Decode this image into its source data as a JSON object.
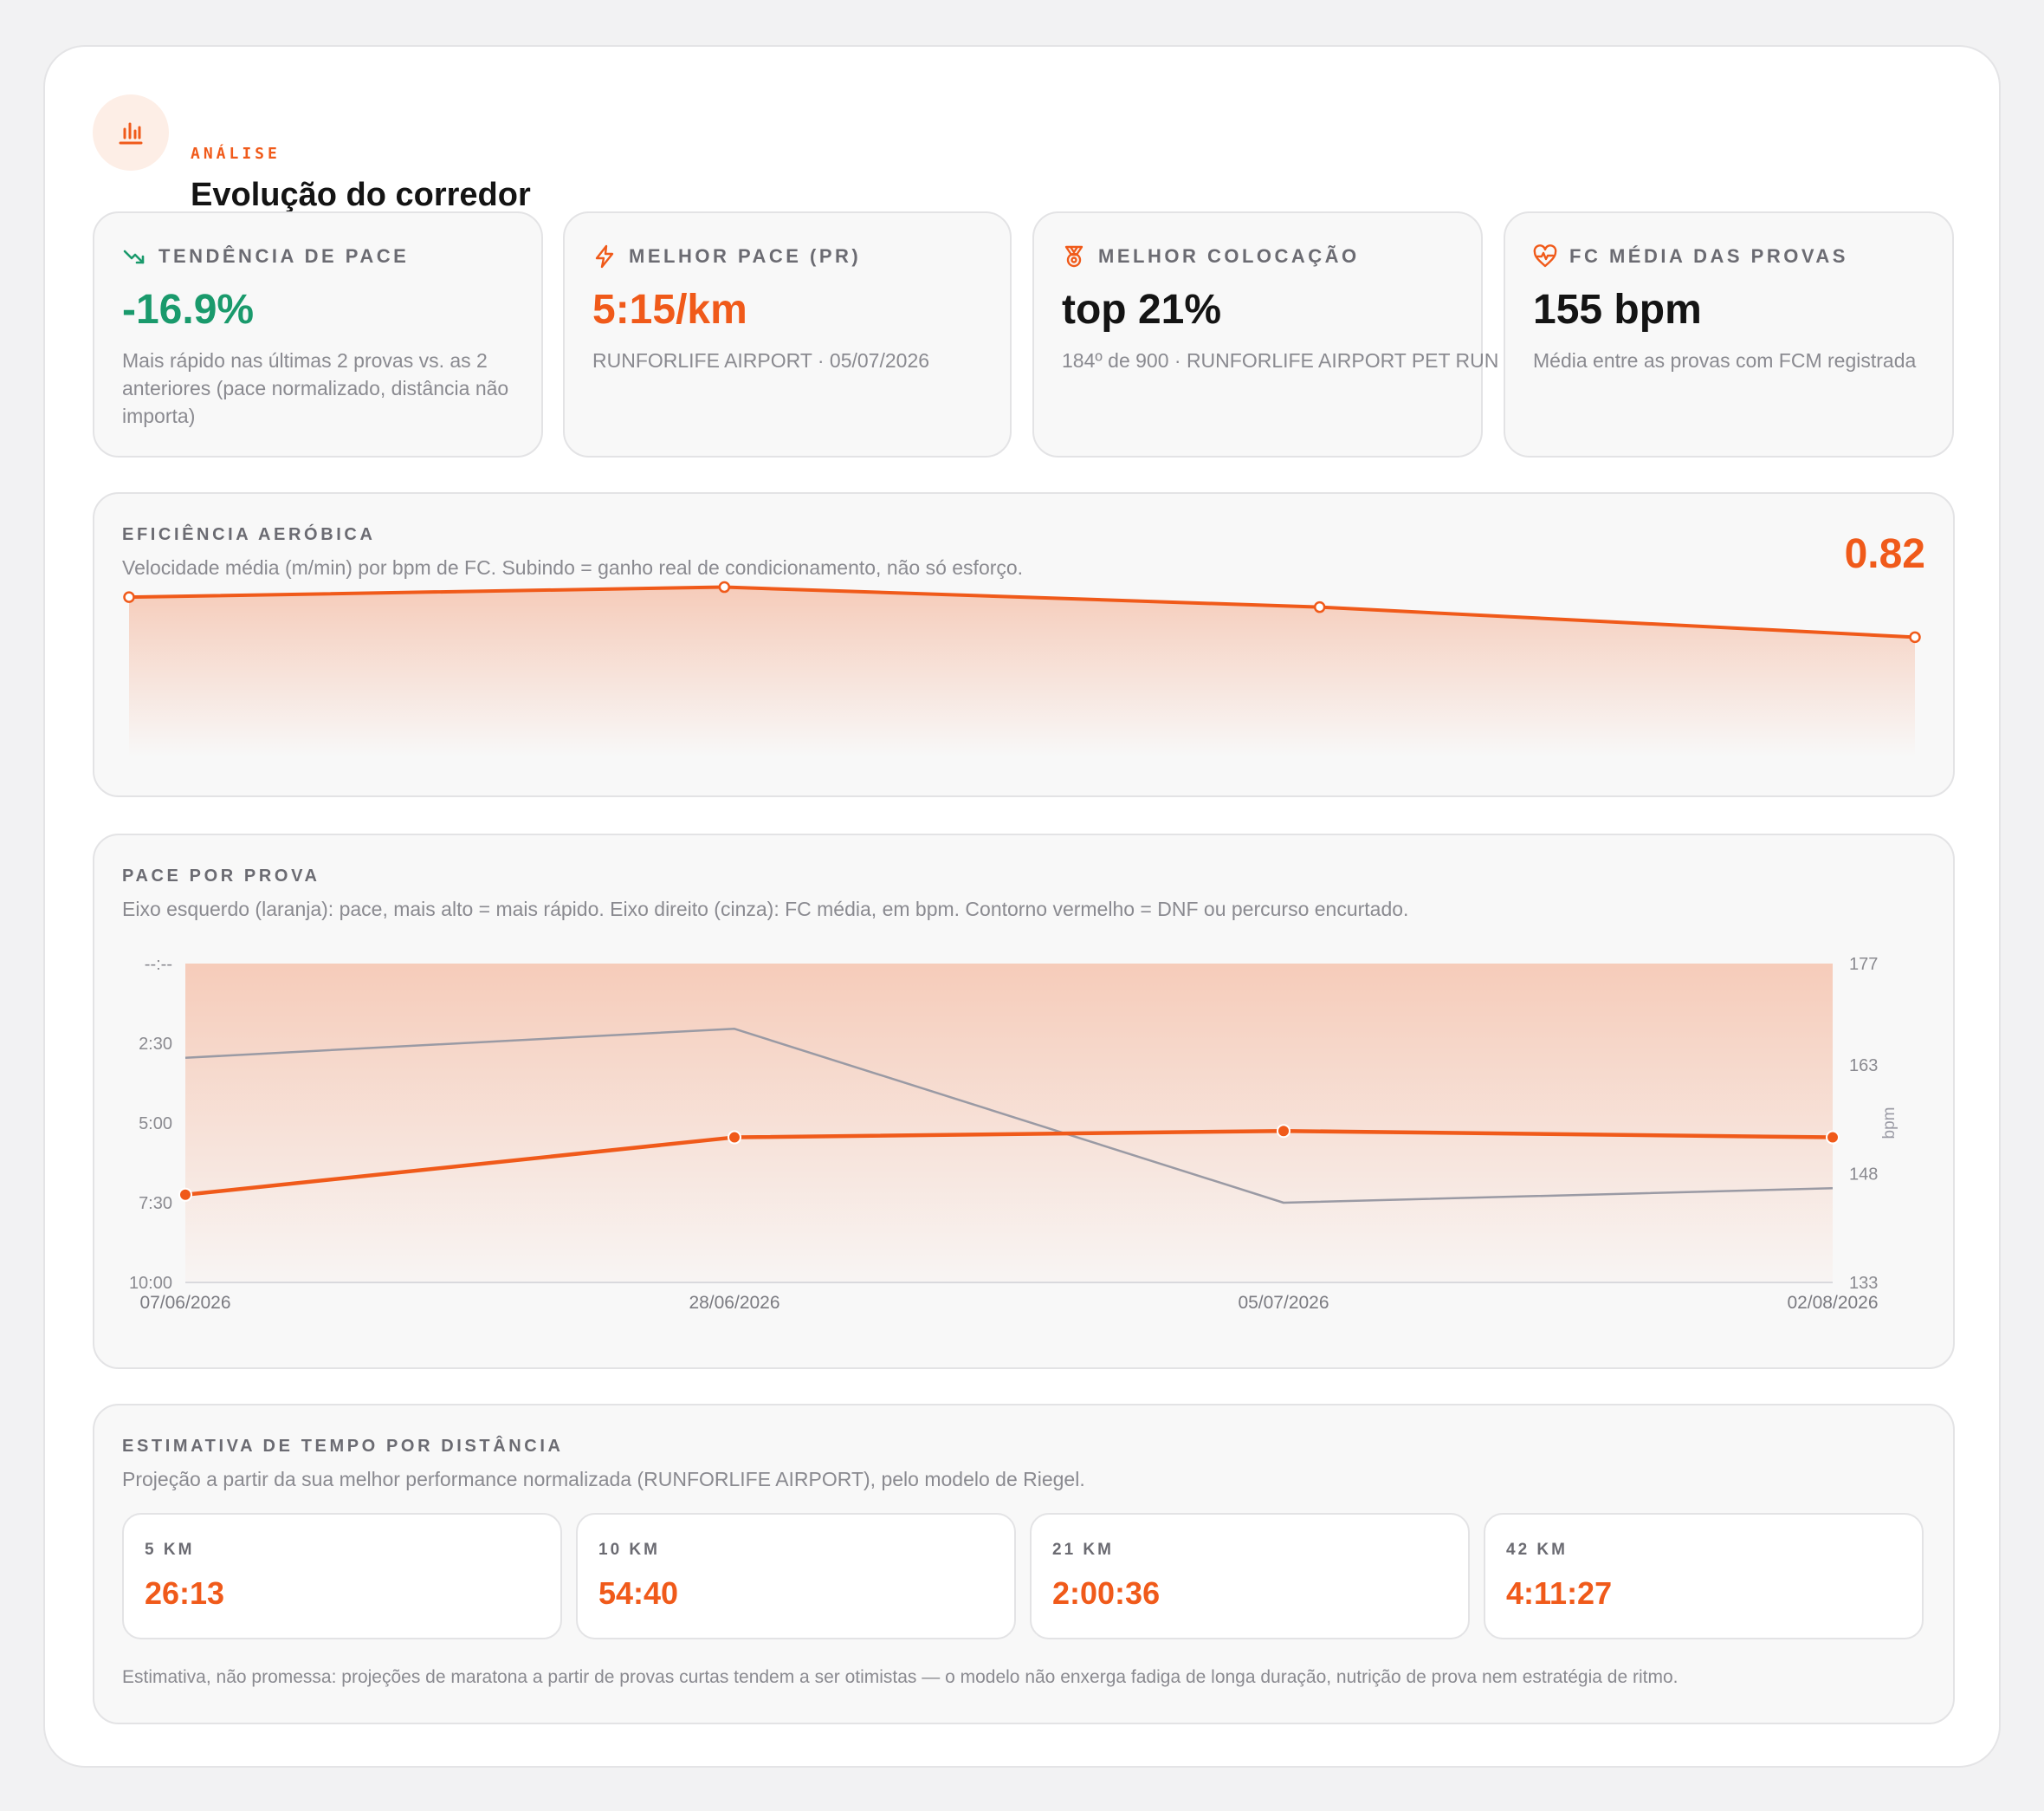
{
  "header": {
    "eyebrow": "ANÁLISE",
    "title": "Evolução do corredor",
    "icon": "bar-chart-icon"
  },
  "stats": [
    {
      "icon": "trending-down-icon",
      "label": "TENDÊNCIA DE PACE",
      "value": "-16.9%",
      "value_color": "#1a9a6c",
      "description": "Mais rápido nas últimas 2 provas vs. as 2 anteriores (pace normalizado, distância não importa)"
    },
    {
      "icon": "lightning-icon",
      "label": "MELHOR PACE (PR)",
      "value": "5:15/km",
      "value_color": "#f05a1a",
      "description": "RUNFORLIFE AIRPORT · 05/07/2026"
    },
    {
      "icon": "medal-icon",
      "label": "MELHOR COLOCAÇÃO",
      "value": "top 21%",
      "value_color": "#141414",
      "description": "184º de 900 · RUNFORLIFE AIRPORT PET RUN"
    },
    {
      "icon": "heart-pulse-icon",
      "label": "FC MÉDIA DAS PROVAS",
      "value": "155 bpm",
      "value_color": "#141414",
      "description": "Média entre as provas com FCM registrada"
    }
  ],
  "aerobic": {
    "title": "EFICIÊNCIA AERÓBICA",
    "subtitle": "Velocidade média (m/min) por bpm de FC. Subindo = ganho real de condicionamento, não só esforço.",
    "value": "0.82"
  },
  "pace_section": {
    "title": "PACE POR PROVA",
    "subtitle": "Eixo esquerdo (laranja): pace, mais alto = mais rápido. Eixo direito (cinza): FC média, em bpm. Contorno vermelho = DNF ou percurso encurtado."
  },
  "chart_data": [
    {
      "type": "area",
      "title": "EFICIÊNCIA AERÓBICA",
      "x": [
        "07/06/2026",
        "28/06/2026",
        "05/07/2026",
        "02/08/2026"
      ],
      "series": [
        {
          "values": [
            0.86,
            0.87,
            0.85,
            0.82
          ]
        }
      ],
      "ylim": [
        0.7,
        0.88
      ],
      "axes_visible": false,
      "color": "#f05a1a"
    },
    {
      "type": "line",
      "title": "PACE POR PROVA",
      "categories": [
        "07/06/2026",
        "28/06/2026",
        "05/07/2026",
        "02/08/2026"
      ],
      "y_left_ticks": [
        "--:--",
        "2:30",
        "5:00",
        "7:30",
        "10:00"
      ],
      "y_left_unit": "min/km, inverted (higher = faster)",
      "y_left_range_minutes": [
        0,
        10
      ],
      "y_right_ticks": [
        "177",
        "163",
        "148",
        "133"
      ],
      "y_right_label": "bpm",
      "y_right_range": [
        133,
        177
      ],
      "series": [
        {
          "axis": "left",
          "color": "#f05a1a",
          "values_min_per_km": [
            7.25,
            5.45,
            5.25,
            5.45
          ]
        },
        {
          "axis": "right",
          "color": "#9a9aa4",
          "values": [
            164,
            168,
            144,
            146
          ]
        }
      ]
    }
  ],
  "estimates": {
    "title": "ESTIMATIVA DE TEMPO POR DISTÂNCIA",
    "subtitle": "Projeção a partir da sua melhor performance normalizada (RUNFORLIFE AIRPORT), pelo modelo de Riegel.",
    "items": [
      {
        "distance": "5 KM",
        "time": "26:13"
      },
      {
        "distance": "10 KM",
        "time": "54:40"
      },
      {
        "distance": "21 KM",
        "time": "2:00:36"
      },
      {
        "distance": "42 KM",
        "time": "4:11:27"
      }
    ],
    "footnote": "Estimativa, não promessa: projeções de maratona a partir de provas curtas tendem a ser otimistas — o modelo não enxerga fadiga de longa duração, nutrição de prova nem estratégia de ritmo."
  }
}
